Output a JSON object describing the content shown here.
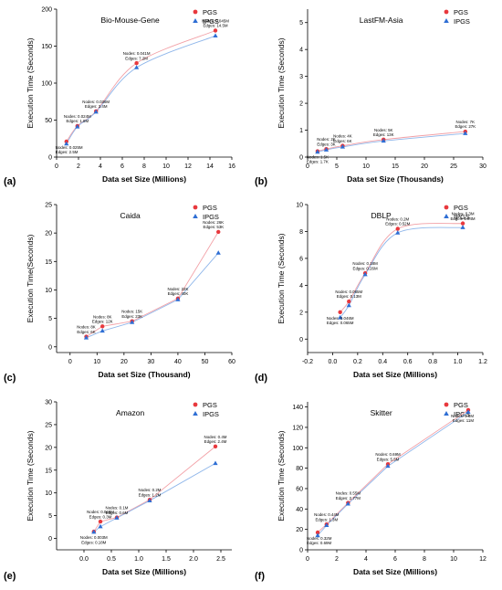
{
  "colors": {
    "PGS": "#e8383d",
    "IPGS": "#2e6ed4",
    "PGS_curve": "#f2a0a6",
    "IPGS_curve": "#8fb6ea"
  },
  "chart_data": [
    {
      "panel_label": "(a)",
      "type": "scatter",
      "title": "Bio-Mouse-Gene",
      "xlabel": "Data set Size (Millions)",
      "ylabel": "Execution Time (Seconds)",
      "xlim": [
        0,
        16
      ],
      "ylim": [
        0,
        200
      ],
      "xticks": [
        0,
        2,
        4,
        6,
        8,
        10,
        12,
        14,
        16
      ],
      "yticks": [
        0,
        50,
        100,
        150,
        200
      ],
      "curve": "smooth",
      "legend": "top-right",
      "series": [
        {
          "name": "PGS",
          "marker": "circle",
          "x": [
            0.9,
            1.9,
            3.6,
            7.3,
            14.5
          ],
          "y": [
            21,
            42,
            62,
            127,
            171
          ]
        },
        {
          "name": "IPGS",
          "marker": "triangle",
          "x": [
            0.9,
            1.9,
            3.6,
            7.3,
            14.5
          ],
          "y": [
            18,
            41,
            61,
            121,
            164
          ]
        }
      ],
      "annotations": [
        {
          "x": 0.9,
          "y": 21,
          "lines": [
            "Nodes: 0.025M",
            "Edges: 2.5M"
          ],
          "pos": "below"
        },
        {
          "x": 1.9,
          "y": 42,
          "lines": [
            "Nodes: 0.024M",
            "Edges: 1.8M"
          ],
          "pos": "above"
        },
        {
          "x": 3.6,
          "y": 62,
          "lines": [
            "Nodes: 0.036M",
            "Edges: 3.4M"
          ],
          "pos": "above"
        },
        {
          "x": 7.3,
          "y": 127,
          "lines": [
            "Nodes: 0.041M",
            "Edges: 7.2M"
          ],
          "pos": "above"
        },
        {
          "x": 14.5,
          "y": 171,
          "lines": [
            "Nodes: 0.045M",
            "Edges: 14.5M"
          ],
          "pos": "above"
        }
      ]
    },
    {
      "panel_label": "(b)",
      "type": "scatter",
      "title": "LastFM-Asia",
      "xlabel": "Data set Size (Thousands)",
      "ylabel": "Execution Time (Seconds)",
      "xlim": [
        0,
        30
      ],
      "ylim": [
        0,
        5.5
      ],
      "xticks": [
        0,
        5,
        10,
        15,
        20,
        25,
        30
      ],
      "yticks": [
        0,
        1,
        2,
        3,
        4,
        5
      ],
      "curve": "smooth",
      "legend": "top-right",
      "series": [
        {
          "name": "PGS",
          "marker": "circle",
          "x": [
            1.7,
            3.2,
            6.0,
            13.0,
            27.0
          ],
          "y": [
            0.22,
            0.3,
            0.42,
            0.65,
            0.95
          ]
        },
        {
          "name": "IPGS",
          "marker": "triangle",
          "x": [
            1.7,
            3.2,
            6.0,
            13.0,
            27.0
          ],
          "y": [
            0.19,
            0.27,
            0.38,
            0.6,
            0.88
          ]
        }
      ],
      "annotations": [
        {
          "x": 1.7,
          "y": 0.22,
          "lines": [
            "Nodes: 1.5K",
            "Edges: 1.7K"
          ],
          "pos": "below"
        },
        {
          "x": 3.2,
          "y": 0.3,
          "lines": [
            "Nodes: 2K",
            "Edges: 3K"
          ],
          "pos": "above"
        },
        {
          "x": 6.0,
          "y": 0.42,
          "lines": [
            "Nodes: 4K",
            "Edges: 6K"
          ],
          "pos": "above"
        },
        {
          "x": 13.0,
          "y": 0.65,
          "lines": [
            "Nodes: 5K",
            "Edges: 13K"
          ],
          "pos": "above"
        },
        {
          "x": 27.0,
          "y": 0.95,
          "lines": [
            "Nodes: 7K",
            "Edges: 27K"
          ],
          "pos": "above"
        }
      ]
    },
    {
      "panel_label": "(c)",
      "type": "scatter",
      "title": "Caida",
      "xlabel": "Data set Size (Thousand)",
      "ylabel": "Execution Time(Seconds)",
      "xlim": [
        -5,
        60
      ],
      "ylim": [
        -1,
        25
      ],
      "xticks": [
        0,
        10,
        20,
        30,
        40,
        50,
        60
      ],
      "yticks": [
        0,
        5,
        10,
        15,
        20,
        25
      ],
      "curve": "straight",
      "legend": "top-right",
      "series": [
        {
          "name": "PGS",
          "marker": "circle",
          "x": [
            6,
            12,
            23,
            40,
            55
          ],
          "y": [
            1.8,
            3.6,
            4.5,
            8.5,
            20.2
          ]
        },
        {
          "name": "IPGS",
          "marker": "triangle",
          "x": [
            6,
            12,
            23,
            40,
            55
          ],
          "y": [
            1.6,
            2.8,
            4.3,
            8.3,
            16.5
          ]
        }
      ],
      "annotations": [
        {
          "x": 6,
          "y": 1.8,
          "lines": [
            "Nodes: 8K",
            "Edges: 6K"
          ],
          "pos": "above"
        },
        {
          "x": 12,
          "y": 3.6,
          "lines": [
            "Nodes: 8K",
            "Edges: 12K"
          ],
          "pos": "above"
        },
        {
          "x": 23,
          "y": 4.5,
          "lines": [
            "Nodes: 15K",
            "Edges: 23K"
          ],
          "pos": "above"
        },
        {
          "x": 40,
          "y": 8.5,
          "lines": [
            "Nodes: 22K",
            "Edges: 40K"
          ],
          "pos": "above"
        },
        {
          "x": 55,
          "y": 20.2,
          "lines": [
            "Nodes: 26K",
            "Edges: 53K"
          ],
          "pos": "above"
        }
      ]
    },
    {
      "panel_label": "(d)",
      "type": "scatter",
      "title": "DBLP",
      "xlabel": "Data set Size (Millions)",
      "ylabel": "Execution Time (Seconds)",
      "xlim": [
        -0.2,
        1.2
      ],
      "ylim": [
        -1,
        10
      ],
      "xticks": [
        -0.2,
        0.0,
        0.2,
        0.4,
        0.6,
        0.8,
        1.0,
        1.2
      ],
      "yticks": [
        0,
        2,
        4,
        6,
        8,
        10
      ],
      "curve": "smooth",
      "legend": "top-right",
      "series": [
        {
          "name": "PGS",
          "marker": "circle",
          "x": [
            0.06,
            0.13,
            0.26,
            0.52,
            1.04
          ],
          "y": [
            2.0,
            2.8,
            4.9,
            8.2,
            8.6
          ]
        },
        {
          "name": "IPGS",
          "marker": "triangle",
          "x": [
            0.06,
            0.13,
            0.26,
            0.52,
            1.04
          ],
          "y": [
            1.6,
            2.5,
            4.8,
            7.9,
            8.3
          ]
        }
      ],
      "annotations": [
        {
          "x": 0.06,
          "y": 2.0,
          "lines": [
            "Nodes: 0.046M",
            "Edges: 0.065M"
          ],
          "pos": "below"
        },
        {
          "x": 0.13,
          "y": 2.8,
          "lines": [
            "Nodes: 0.065M",
            "Edges: 0.13M"
          ],
          "pos": "above"
        },
        {
          "x": 0.26,
          "y": 4.9,
          "lines": [
            "Nodes: 0.18M",
            "Edges: 0.26M"
          ],
          "pos": "above"
        },
        {
          "x": 0.52,
          "y": 8.2,
          "lines": [
            "Nodes: 0.2M",
            "Edges: 0.52M"
          ],
          "pos": "above"
        },
        {
          "x": 1.04,
          "y": 8.6,
          "lines": [
            "Nodes: 0.3M",
            "Edges: 1.04M"
          ],
          "pos": "above"
        }
      ]
    },
    {
      "panel_label": "(e)",
      "type": "scatter",
      "title": "Amazon",
      "xlabel": "Data set Size (Millions)",
      "ylabel": "Execution Time (Seconds)",
      "xlim": [
        -0.5,
        2.7
      ],
      "ylim": [
        -2.5,
        30
      ],
      "xticks": [
        0.0,
        0.5,
        1.0,
        1.5,
        2.0,
        2.5
      ],
      "yticks": [
        0,
        5,
        10,
        15,
        20,
        25,
        30
      ],
      "curve": "straight",
      "legend": "top-right",
      "series": [
        {
          "name": "PGS",
          "marker": "circle",
          "x": [
            0.18,
            0.3,
            0.6,
            1.2,
            2.4
          ],
          "y": [
            1.5,
            3.7,
            4.6,
            8.5,
            20.2
          ]
        },
        {
          "name": "IPGS",
          "marker": "triangle",
          "x": [
            0.18,
            0.3,
            0.6,
            1.2,
            2.4
          ],
          "y": [
            1.4,
            2.6,
            4.5,
            8.3,
            16.5
          ]
        }
      ],
      "annotations": [
        {
          "x": 0.18,
          "y": 1.5,
          "lines": [
            "Nodes: 0.003M",
            "Edges: 0.18M"
          ],
          "pos": "below"
        },
        {
          "x": 0.3,
          "y": 3.7,
          "lines": [
            "Nodes: 0.066M",
            "Edges: 0.3M"
          ],
          "pos": "above"
        },
        {
          "x": 0.6,
          "y": 4.6,
          "lines": [
            "Nodes: 0.1M",
            "Edges: 0.6M"
          ],
          "pos": "above"
        },
        {
          "x": 1.2,
          "y": 8.5,
          "lines": [
            "Nodes: 0.2M",
            "Edges: 1.2M"
          ],
          "pos": "above"
        },
        {
          "x": 2.4,
          "y": 20.2,
          "lines": [
            "Nodes: 0.4M",
            "Edges: 2.4M"
          ],
          "pos": "above"
        }
      ]
    },
    {
      "panel_label": "(f)",
      "type": "scatter",
      "title": "Skitter",
      "xlabel": "Data set Size (Millions)",
      "ylabel": "Execution Time (Seconds)",
      "xlim": [
        0,
        12
      ],
      "ylim": [
        0,
        145
      ],
      "xticks": [
        0,
        2,
        4,
        6,
        8,
        10,
        12
      ],
      "yticks": [
        0,
        20,
        40,
        60,
        80,
        100,
        120,
        140
      ],
      "curve": "straight",
      "legend": "top-right",
      "series": [
        {
          "name": "PGS",
          "marker": "circle",
          "x": [
            0.69,
            1.3,
            2.77,
            5.5,
            11.0
          ],
          "y": [
            17,
            25,
            46,
            84,
            137
          ]
        },
        {
          "name": "IPGS",
          "marker": "triangle",
          "x": [
            0.69,
            1.3,
            2.77,
            5.5,
            11.0
          ],
          "y": [
            14,
            24,
            45,
            82,
            135
          ]
        }
      ],
      "annotations": [
        {
          "x": 0.69,
          "y": 17,
          "lines": [
            "Nodes: 0.32M",
            "Edges: 0.69M"
          ],
          "pos": "below"
        },
        {
          "x": 1.3,
          "y": 25,
          "lines": [
            "Nodes: 0.44M",
            "Edges: 1.3M"
          ],
          "pos": "above"
        },
        {
          "x": 2.77,
          "y": 46,
          "lines": [
            "Nodes: 0.55M",
            "Edges: 2.77M"
          ],
          "pos": "above"
        },
        {
          "x": 5.5,
          "y": 84,
          "lines": [
            "Nodes: 0.69M",
            "Edges: 5.5M"
          ],
          "pos": "above"
        },
        {
          "x": 11.0,
          "y": 137,
          "lines": [
            "Nodes: 1.6M",
            "Edges: 11M"
          ],
          "pos": "below"
        }
      ]
    }
  ]
}
